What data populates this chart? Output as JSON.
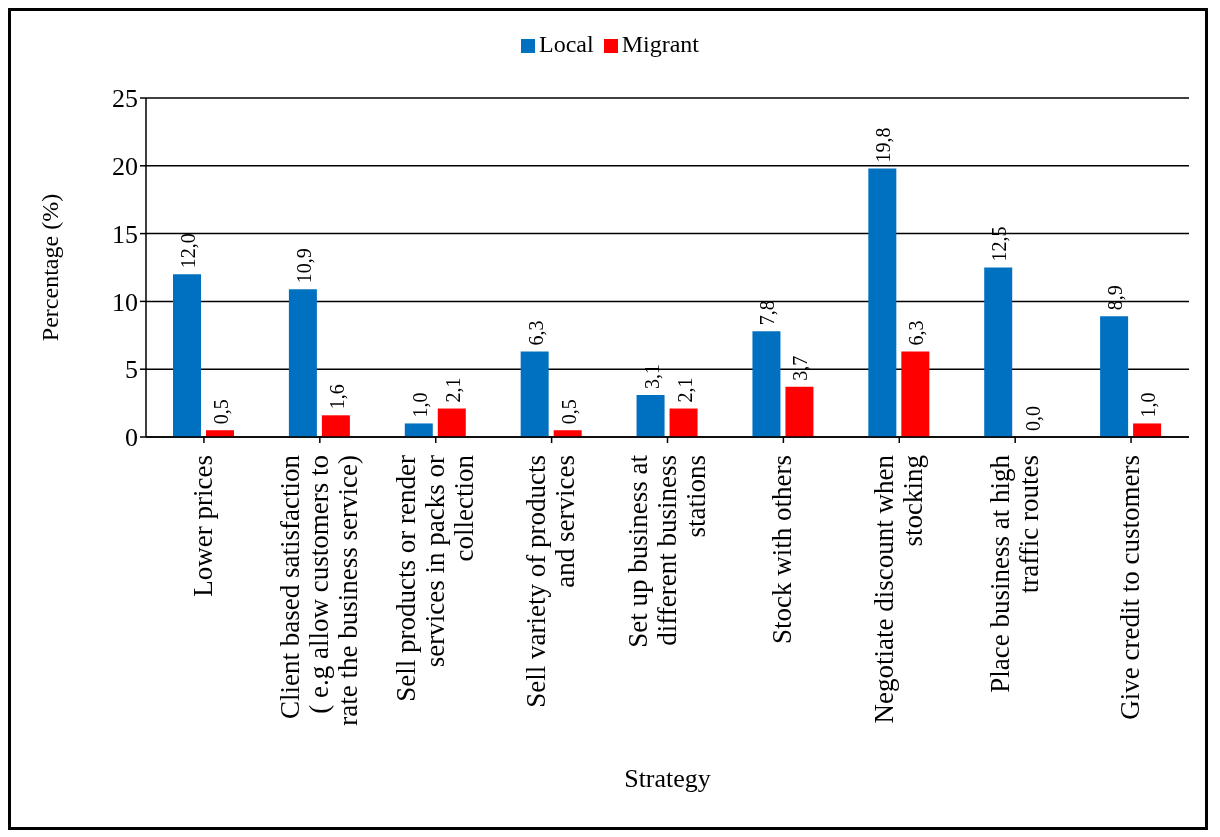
{
  "chart_data": {
    "type": "bar",
    "xlabel": "Strategy",
    "ylabel": "Percentage (%)",
    "ylim": [
      0,
      25
    ],
    "yticks": [
      0,
      5,
      10,
      15,
      20,
      25
    ],
    "grid": "y",
    "legend": "top",
    "categories": [
      "Lower prices",
      "Client based satisfaction ( e.g allow customers to rate the business service)",
      "Sell products or render services in packs or collection",
      "Sell variety of products and services",
      "Set up business at different business stations",
      "Stock with others",
      "Negotiate discount when stocking",
      "Place business at high traffic routes",
      "Give credit to customers"
    ],
    "series": [
      {
        "name": "Local",
        "color": "#0070c0",
        "values": [
          12.0,
          10.9,
          1.0,
          6.3,
          3.1,
          7.8,
          19.8,
          12.5,
          8.9
        ],
        "value_labels": [
          "12,0",
          "10,9",
          "1,0",
          "6,3",
          "3,1",
          "7,8",
          "19,8",
          "12,5",
          "8,9"
        ]
      },
      {
        "name": "Migrant",
        "color": "#ff0000",
        "values": [
          0.5,
          1.6,
          2.1,
          0.5,
          2.1,
          3.7,
          6.3,
          0.0,
          1.0
        ],
        "value_labels": [
          "0,5",
          "1,6",
          "2,1",
          "0,5",
          "2,1",
          "3,7",
          "6,3",
          "0,0",
          "1,0"
        ]
      }
    ]
  }
}
